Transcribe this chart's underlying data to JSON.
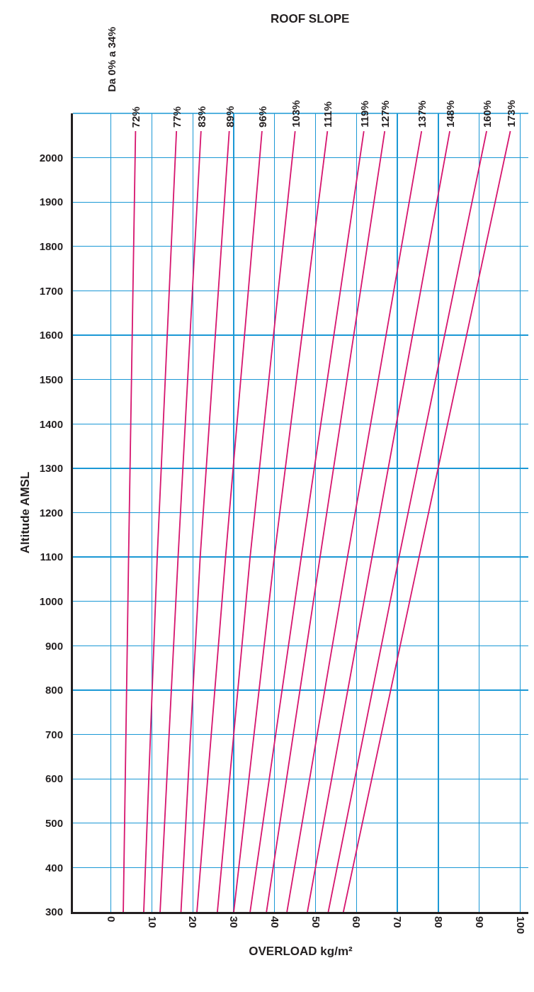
{
  "chart_data": {
    "type": "line",
    "xlabel": "OVERLOAD kg/m²",
    "ylabel": "Altitude AMSL",
    "annotations": [
      "ROOF SLOPE",
      "Da 0% a 34%"
    ],
    "xlim": [
      -9.3,
      102
    ],
    "ylim": [
      300,
      2100
    ],
    "xticks": [
      0,
      10,
      20,
      30,
      40,
      50,
      60,
      70,
      80,
      90,
      100
    ],
    "yticks": [
      300,
      400,
      500,
      600,
      700,
      800,
      900,
      1000,
      1100,
      1200,
      1300,
      1400,
      1500,
      1600,
      1700,
      1800,
      1900,
      2000
    ],
    "grid": true,
    "marker": "none",
    "line_style": "solid",
    "series": [
      {
        "name": "72%",
        "color": "#d6156e",
        "x": [
          3.0,
          4.3,
          6.0
        ],
        "values": [
          300,
          1100,
          2060
        ]
      },
      {
        "name": "77%",
        "color": "#d6156e",
        "x": [
          8.0,
          11.3,
          16.0
        ],
        "values": [
          300,
          1100,
          2060
        ]
      },
      {
        "name": "83%",
        "color": "#d6156e",
        "x": [
          12.0,
          16.4,
          22.0
        ],
        "values": [
          300,
          1100,
          2060
        ]
      },
      {
        "name": "89%",
        "color": "#d6156e",
        "x": [
          17.1,
          21.8,
          28.9
        ],
        "values": [
          300,
          1100,
          2060
        ]
      },
      {
        "name": "96%",
        "color": "#d6156e",
        "x": [
          21.0,
          28.0,
          36.9
        ],
        "values": [
          300,
          1100,
          2060
        ]
      },
      {
        "name": "103%",
        "color": "#d6156e",
        "x": [
          26.0,
          34.0,
          45.0
        ],
        "values": [
          300,
          1100,
          2060
        ]
      },
      {
        "name": "111%",
        "color": "#d6156e",
        "x": [
          30.0,
          39.9,
          52.9
        ],
        "values": [
          300,
          1100,
          2060
        ]
      },
      {
        "name": "119%",
        "color": "#d6156e",
        "x": [
          34.0,
          46.5,
          61.8
        ],
        "values": [
          300,
          1100,
          2060
        ]
      },
      {
        "name": "127%",
        "color": "#d6156e",
        "x": [
          38.0,
          51.1,
          66.9
        ],
        "values": [
          300,
          1100,
          2060
        ]
      },
      {
        "name": "137%",
        "color": "#d6156e",
        "x": [
          43.0,
          57.8,
          75.9
        ],
        "values": [
          300,
          1100,
          2060
        ]
      },
      {
        "name": "148%",
        "color": "#d6156e",
        "x": [
          48.0,
          63.8,
          82.8
        ],
        "values": [
          300,
          1100,
          2060
        ]
      },
      {
        "name": "160%",
        "color": "#d6156e",
        "x": [
          53.1,
          70.4,
          91.8
        ],
        "values": [
          300,
          1100,
          2060
        ]
      },
      {
        "name": "173%",
        "color": "#d6156e",
        "x": [
          56.8,
          75.3,
          97.6
        ],
        "values": [
          300,
          1100,
          2060
        ]
      }
    ]
  }
}
